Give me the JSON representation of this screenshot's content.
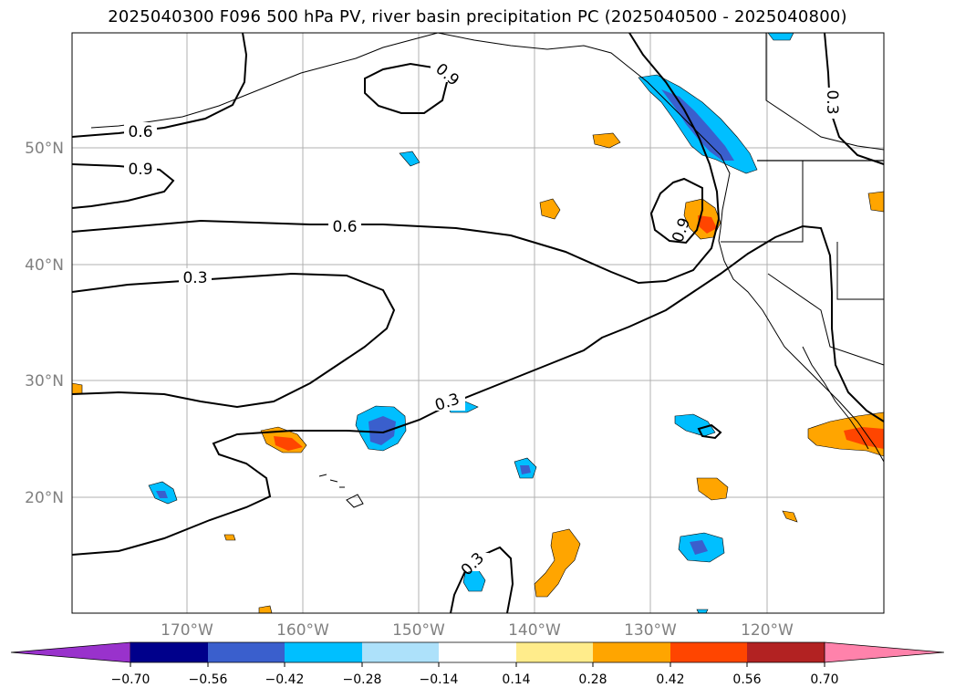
{
  "title": "2025040300 F096 500 hPa PV, river basin precipitation PC (2025040500 - 2025040800)",
  "map": {
    "lat_labels": [
      "50°N",
      "40°N",
      "30°N",
      "20°N"
    ],
    "lon_labels": [
      "170°W",
      "160°W",
      "150°W",
      "140°W",
      "130°W",
      "120°W"
    ],
    "contour_labels": [
      "0.6",
      "0.9",
      "0.9",
      "0.6",
      "0.3",
      "0.3",
      "0.3",
      "0.9",
      "0.3"
    ],
    "shade_colors": {
      "c_neg070": "#9932CC",
      "c_neg056": "#00008B",
      "c_neg042": "#3A5FCD",
      "c_neg028": "#00BFFF",
      "c_neg014": "#ADE1FA",
      "c_zero": "#FFFFFF",
      "c_pos014": "#FFEC8B",
      "c_pos028": "#FFA500",
      "c_pos042": "#FF4500",
      "c_pos056": "#B22222",
      "c_pos070": "#FF82AB"
    }
  },
  "colorbar": {
    "ticks": [
      "−0.70",
      "−0.56",
      "−0.42",
      "−0.28",
      "−0.14",
      "0.14",
      "0.28",
      "0.42",
      "0.56",
      "0.70"
    ],
    "colors": [
      "#9932CC",
      "#00008B",
      "#3A5FCD",
      "#00BFFF",
      "#ADE1FA",
      "#FFFFFF",
      "#FFEC8B",
      "#FFA500",
      "#FF4500",
      "#B22222",
      "#FF82AB"
    ]
  }
}
